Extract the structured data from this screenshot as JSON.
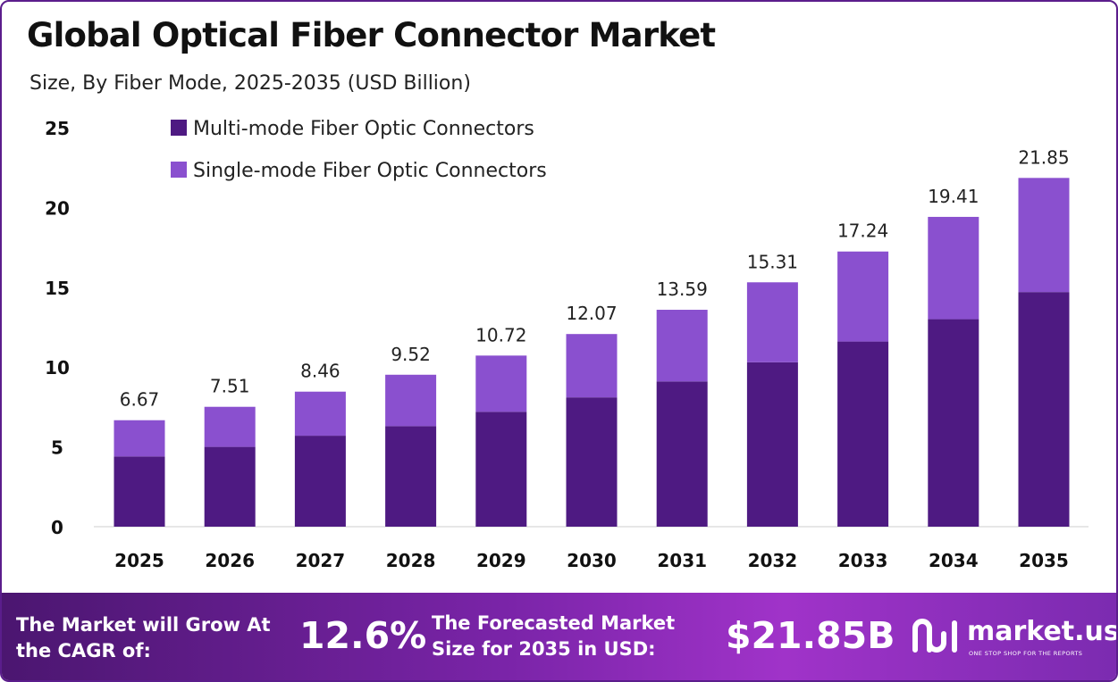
{
  "header": {
    "title": "Global Optical Fiber Connector Market",
    "subtitle": "Size, By Fiber Mode, 2025-2035 (USD Billion)"
  },
  "colors": {
    "multi_mode": "#4e1a82",
    "single_mode": "#8a50cf",
    "axis_text": "#111111",
    "border": "#5b1d8c"
  },
  "chart_data": {
    "type": "bar",
    "stacked": true,
    "categories": [
      "2025",
      "2026",
      "2027",
      "2028",
      "2029",
      "2030",
      "2031",
      "2032",
      "2033",
      "2034",
      "2035"
    ],
    "series": [
      {
        "name": "Multi-mode Fiber Optic Connectors",
        "values": [
          4.4,
          5.0,
          5.7,
          6.3,
          7.2,
          8.1,
          9.1,
          10.3,
          11.6,
          13.0,
          14.7
        ]
      },
      {
        "name": "Single-mode Fiber Optic Connectors",
        "values": [
          2.27,
          2.51,
          2.76,
          3.22,
          3.52,
          3.97,
          4.49,
          5.01,
          5.64,
          6.41,
          7.15
        ]
      }
    ],
    "totals": [
      "6.67",
      "7.51",
      "8.46",
      "9.52",
      "10.72",
      "12.07",
      "13.59",
      "15.31",
      "17.24",
      "19.41",
      "21.85"
    ],
    "ylim": [
      0,
      25
    ],
    "yticks": [
      "0",
      "5",
      "10",
      "15",
      "20",
      "25"
    ],
    "xlabel": "",
    "ylabel": "",
    "grid": false,
    "legend_position": "top-left"
  },
  "footer": {
    "cagr_label": "The Market will Grow At the CAGR of:",
    "cagr_value": "12.6%",
    "forecast_label": "The Forecasted Market Size for 2035 in USD:",
    "forecast_value": "$21.85B",
    "logo_icon": "market-us-logo-icon",
    "logo_text": "market.us",
    "logo_tagline": "ONE STOP SHOP FOR THE REPORTS"
  }
}
